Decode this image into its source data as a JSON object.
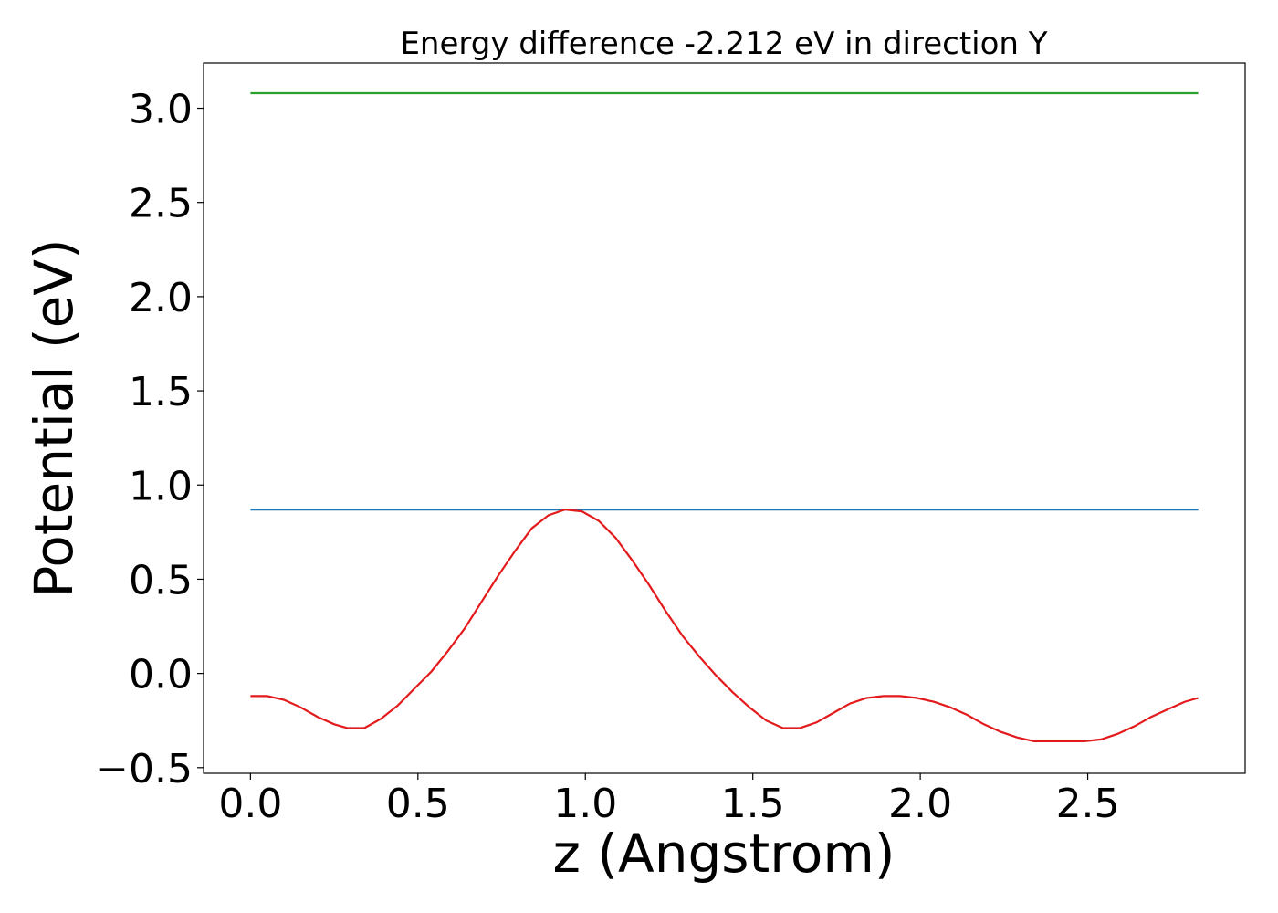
{
  "chart_data": {
    "type": "line",
    "title": "Energy difference -2.212 eV in direction Y",
    "xlabel": "z (Angstrom)",
    "ylabel": "Potential (eV)",
    "xlim": [
      -0.14,
      2.97
    ],
    "ylim": [
      -0.53,
      3.24
    ],
    "x_ticks": [
      0.0,
      0.5,
      1.0,
      1.5,
      2.0,
      2.5
    ],
    "x_tick_labels": [
      "0.0",
      "0.5",
      "1.0",
      "1.5",
      "2.0",
      "2.5"
    ],
    "y_ticks": [
      -0.5,
      0.0,
      0.5,
      1.0,
      1.5,
      2.0,
      2.5,
      3.0
    ],
    "y_tick_labels": [
      "−0.5",
      "0.0",
      "0.5",
      "1.0",
      "1.5",
      "2.0",
      "2.5",
      "3.0"
    ],
    "grid": false,
    "series": [
      {
        "color": "#2ca02c",
        "x": [
          0.0,
          2.83
        ],
        "y": [
          3.08,
          3.08
        ]
      },
      {
        "color": "#1f77b4",
        "x": [
          0.0,
          2.83
        ],
        "y": [
          0.87,
          0.87
        ]
      },
      {
        "color": "#e31a1c",
        "x": [
          0.0,
          0.05,
          0.1,
          0.15,
          0.2,
          0.25,
          0.29,
          0.34,
          0.39,
          0.44,
          0.49,
          0.54,
          0.59,
          0.64,
          0.69,
          0.74,
          0.79,
          0.84,
          0.89,
          0.94,
          0.99,
          1.04,
          1.09,
          1.14,
          1.19,
          1.24,
          1.29,
          1.34,
          1.39,
          1.44,
          1.49,
          1.54,
          1.59,
          1.64,
          1.69,
          1.74,
          1.79,
          1.84,
          1.89,
          1.94,
          1.99,
          2.04,
          2.09,
          2.14,
          2.19,
          2.24,
          2.29,
          2.34,
          2.39,
          2.44,
          2.49,
          2.54,
          2.59,
          2.64,
          2.69,
          2.74,
          2.79,
          2.83
        ],
        "y": [
          -0.12,
          -0.12,
          -0.14,
          -0.18,
          -0.23,
          -0.27,
          -0.29,
          -0.29,
          -0.24,
          -0.17,
          -0.08,
          0.01,
          0.12,
          0.24,
          0.38,
          0.52,
          0.65,
          0.77,
          0.84,
          0.87,
          0.86,
          0.81,
          0.72,
          0.6,
          0.47,
          0.33,
          0.2,
          0.09,
          -0.01,
          -0.1,
          -0.18,
          -0.25,
          -0.29,
          -0.29,
          -0.26,
          -0.21,
          -0.16,
          -0.13,
          -0.12,
          -0.12,
          -0.13,
          -0.15,
          -0.18,
          -0.22,
          -0.27,
          -0.31,
          -0.34,
          -0.36,
          -0.36,
          -0.36,
          -0.36,
          -0.35,
          -0.32,
          -0.28,
          -0.23,
          -0.19,
          -0.15,
          -0.13
        ]
      }
    ]
  }
}
